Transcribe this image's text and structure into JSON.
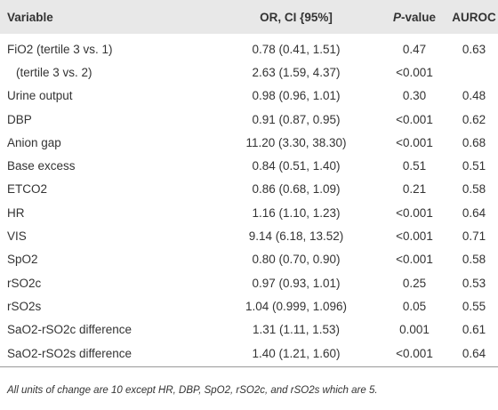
{
  "table": {
    "header": [
      "Variable",
      "OR, CI {95%]",
      {
        "italic": "P",
        "text": "-value"
      },
      "AUROC"
    ],
    "rows": [
      [
        "FiO2 (tertile 3 vs. 1)",
        "0.78 (0.41, 1.51)",
        "0.47",
        "0.63"
      ],
      [
        "(tertile 3 vs. 2)",
        "2.63 (1.59, 4.37)",
        "<0.001",
        null
      ],
      [
        "Urine output",
        "0.98 (0.96, 1.01)",
        "0.30",
        "0.48"
      ],
      [
        "DBP",
        "0.91 (0.87, 0.95)",
        "<0.001",
        "0.62"
      ],
      [
        "Anion gap",
        "11.20 (3.30, 38.30)",
        "<0.001",
        "0.68"
      ],
      [
        "Base excess",
        "0.84 (0.51, 1.40)",
        "0.51",
        "0.51"
      ],
      [
        "ETCO2",
        "0.86 (0.68, 1.09)",
        "0.21",
        "0.58"
      ],
      [
        "HR",
        "1.16 (1.10, 1.23)",
        "<0.001",
        "0.64"
      ],
      [
        "VIS",
        "9.14 (6.18, 13.52)",
        "<0.001",
        "0.71"
      ],
      [
        "SpO2",
        "0.80 (0.70, 0.90)",
        "<0.001",
        "0.58"
      ],
      [
        "rSO2c",
        "0.97 (0.93, 1.01)",
        "0.25",
        "0.53"
      ],
      [
        "rSO2s",
        "1.04 (0.999, 1.096)",
        "0.05",
        "0.55"
      ],
      [
        "SaO2-rSO2c difference",
        "1.31 (1.11, 1.53)",
        "0.001",
        "0.61"
      ],
      [
        "SaO2-rSO2s difference",
        "1.40 (1.21, 1.60)",
        "<0.001",
        "0.64"
      ]
    ],
    "indented_rows": [
      1
    ],
    "footnote": "All units of change are 10 except HR, DBP, SpO2, rSO2c, and rSO2s which are 5."
  }
}
